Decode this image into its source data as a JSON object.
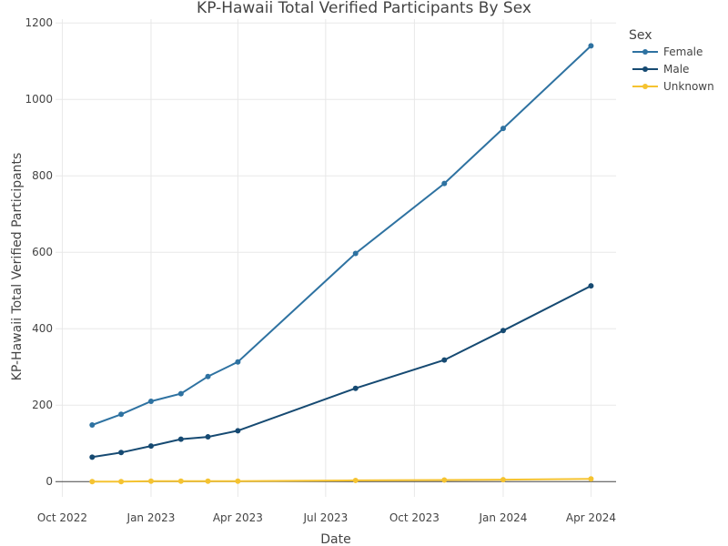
{
  "chart_data": {
    "type": "line",
    "title": "KP-Hawaii Total Verified Participants By Sex",
    "xlabel": "Date",
    "ylabel": "KP-Hawaii Total Verified Participants",
    "x_ticks": [
      "Oct 2022",
      "Jan 2023",
      "Apr 2023",
      "Jul 2023",
      "Oct 2023",
      "Jan 2024",
      "Apr 2024"
    ],
    "y_ticks": [
      0,
      200,
      400,
      600,
      800,
      1000,
      1200
    ],
    "xlim": [
      "2022-09-24",
      "2024-04-27"
    ],
    "ylim": [
      -40,
      1210
    ],
    "x": [
      "2022-11-01",
      "2022-12-01",
      "2023-01-01",
      "2023-02-01",
      "2023-03-01",
      "2023-04-01",
      "2023-08-01",
      "2023-11-01",
      "2024-01-01",
      "2024-04-01"
    ],
    "legend": {
      "title": "Sex",
      "placement": "top-right"
    },
    "grid": true,
    "series": [
      {
        "name": "Female",
        "color": "#2e72a1",
        "values": [
          148,
          176,
          210,
          230,
          275,
          313,
          597,
          780,
          924,
          1140
        ]
      },
      {
        "name": "Male",
        "color": "#164a72",
        "values": [
          64,
          76,
          93,
          111,
          117,
          133,
          244,
          318,
          395,
          512
        ]
      },
      {
        "name": "Unknown",
        "color": "#f5c331",
        "values": [
          0,
          0,
          1,
          1,
          1,
          1,
          3,
          4,
          5,
          7
        ]
      }
    ]
  }
}
